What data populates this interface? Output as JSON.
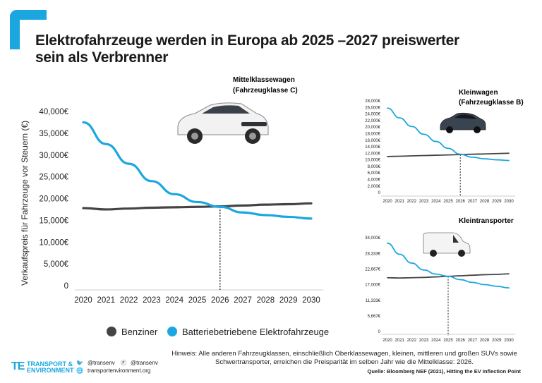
{
  "title_line1": "Elektrofahrzeuge werden in Europa ab 2025 –2027 preiswerter",
  "title_line2": "sein als Verbrenner",
  "colors": {
    "accent": "#1aa7e0",
    "petrol": "#444444",
    "ev": "#1aa7e0"
  },
  "legend": {
    "petrol": "Benziner",
    "ev": "Batteriebetriebene Elektrofahrzeuge"
  },
  "footer": {
    "logo_mark": "TE",
    "logo_line1": "TRANSPORT &",
    "logo_line2": "ENVIRONMENT",
    "twitter": "@transenv",
    "facebook": "@transenv",
    "website": "transportenvironment.org",
    "note": "Hinweis: Alle anderen Fahrzeugklassen, einschließlich Oberklassewagen, kleinen, mittleren und großen SUVs sowie Schwertransporter, erreichen die Preisparität im selben Jahr wie die Mittelklasse: 2026.",
    "source": "Quelle: Bloomberg NEF (2021), Hitting the EV Inflection Point"
  },
  "chart_data": [
    {
      "id": "main",
      "type": "line",
      "title": "Mittelklassewagen",
      "subtitle": "(Fahrzeugklasse C)",
      "ylabel": "Verkaufspreis für Fahrzeuge vor Steuern  (€)",
      "xlabel": "",
      "x": [
        "2020",
        "2021",
        "2022",
        "2023",
        "2024",
        "2025",
        "2026",
        "2027",
        "2028",
        "2029",
        "2030"
      ],
      "ylim": [
        0,
        40000
      ],
      "yticks": [
        0,
        5000,
        10000,
        15000,
        20000,
        25000,
        30000,
        35000,
        40000
      ],
      "ytick_labels": [
        "0",
        "5,000€",
        "10,000€",
        "15,000€",
        "20,000€",
        "25,000€",
        "30,000€",
        "35,000€",
        "40,000€"
      ],
      "series": [
        {
          "name": "Benziner",
          "values": [
            17800,
            17500,
            17700,
            17900,
            18000,
            18100,
            18200,
            18400,
            18600,
            18700,
            18900
          ]
        },
        {
          "name": "Batteriebetriebene Elektrofahrzeuge",
          "values": [
            37500,
            32500,
            28000,
            24000,
            21000,
            19200,
            18100,
            16800,
            16200,
            15800,
            15400
          ]
        }
      ],
      "parity_year": "2026",
      "parity_value": 18100
    },
    {
      "id": "small",
      "type": "line",
      "title": "Kleinwagen",
      "subtitle": "(Fahrzeugklasse B)",
      "x": [
        "2020",
        "2021",
        "2022",
        "2023",
        "2024",
        "2025",
        "2026",
        "2027",
        "2028",
        "2029",
        "2030"
      ],
      "ylim": [
        0,
        28000
      ],
      "yticks": [
        0,
        2000,
        4000,
        6000,
        8000,
        10000,
        12000,
        14000,
        16000,
        18000,
        20000,
        22000,
        24000,
        26000,
        28000
      ],
      "ytick_labels": [
        "0",
        "2,000€",
        "4,000€",
        "6,000€",
        "8,000€",
        "10,000€",
        "12,000€",
        "14,000€",
        "16,000€",
        "18,000€",
        "20,000€",
        "22,000€",
        "24,000€",
        "26,000€",
        "28,000€"
      ],
      "series": [
        {
          "name": "Benziner",
          "values": [
            11000,
            11100,
            11200,
            11300,
            11400,
            11500,
            11600,
            11700,
            11800,
            11900,
            12000
          ]
        },
        {
          "name": "Batteriebetriebene Elektrofahrzeuge",
          "values": [
            25800,
            22800,
            20200,
            17800,
            15600,
            13500,
            11700,
            10800,
            10300,
            10000,
            9800
          ]
        }
      ],
      "parity_year": "2026",
      "parity_value": 11600
    },
    {
      "id": "van",
      "type": "line",
      "title": "Kleintransporter",
      "subtitle": "",
      "x": [
        "2020",
        "2021",
        "2022",
        "2023",
        "2024",
        "2025",
        "2026",
        "2027",
        "2028",
        "2029",
        "2030"
      ],
      "ylim": [
        0,
        34000
      ],
      "yticks": [
        0,
        5667,
        11333,
        17000,
        22667,
        28333,
        34000
      ],
      "ytick_labels": [
        "0",
        "5,667€",
        "11,333€",
        "17,000€",
        "22,667€",
        "28,333€",
        "34,000€"
      ],
      "series": [
        {
          "name": "Benziner",
          "values": [
            19500,
            19400,
            19500,
            19600,
            19800,
            20000,
            20200,
            20400,
            20600,
            20700,
            20900
          ]
        },
        {
          "name": "Batteriebetriebene Elektrofahrzeuge",
          "values": [
            32000,
            28000,
            24800,
            22300,
            20800,
            20000,
            18800,
            17800,
            17000,
            16400,
            15800
          ]
        }
      ],
      "parity_year": "2025",
      "parity_value": 20000
    }
  ]
}
